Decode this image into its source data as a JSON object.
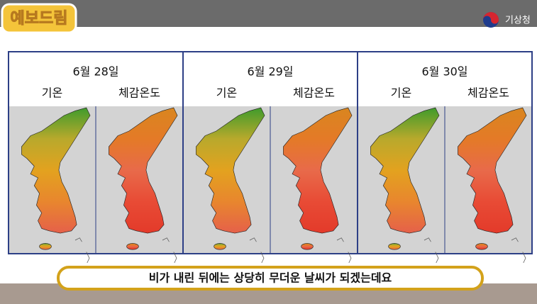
{
  "logo": "예보드림",
  "agency": "기상청",
  "panels": [
    {
      "date": "6월 28일",
      "labels": [
        "기온",
        "체감온도"
      ]
    },
    {
      "date": "6월 29일",
      "labels": [
        "기온",
        "체감온도"
      ]
    },
    {
      "date": "6월 30일",
      "labels": [
        "기온",
        "체감온도"
      ]
    }
  ],
  "subtitle": "비가 내린 뒤에는 상당히 무더운 날씨가 되겠는데요"
}
